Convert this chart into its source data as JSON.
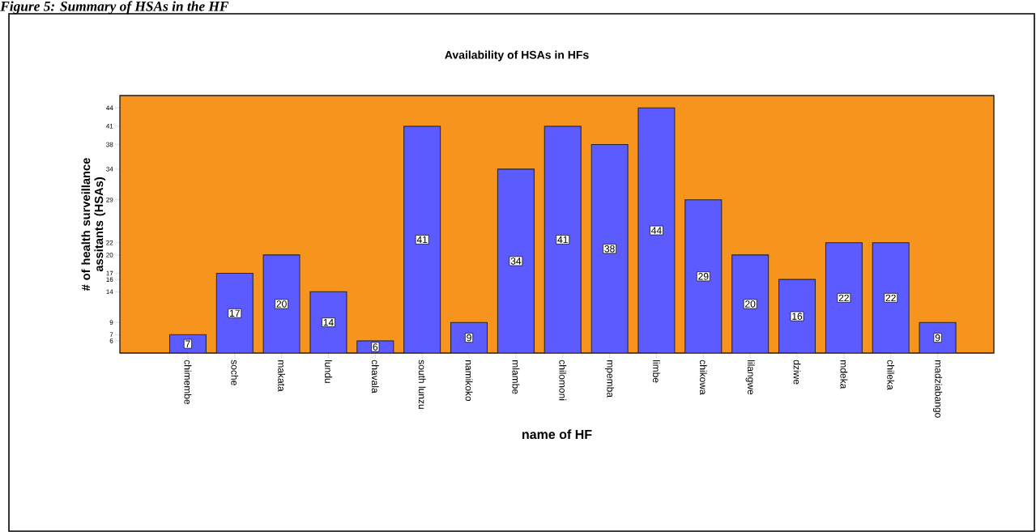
{
  "chart_data": {
    "type": "bar",
    "title": "Availability of HSAs in HFs",
    "xlabel": "name of HF",
    "ylabel": "# of health surveillance assitants (HSAs)",
    "annotations": [
      "Figure 5:      Summary of HSAs in the HF"
    ],
    "categories": [
      "chimembe",
      "soche",
      "makata",
      "lundu",
      "chavala",
      "south lunzu",
      "namikoko",
      "mlambe",
      "chilomoni",
      "mpemba",
      "limbe",
      "chikowa",
      "lilangwe",
      "dziwe",
      "mdeka",
      "chileka",
      "madziabango"
    ],
    "values": [
      7,
      17,
      20,
      14,
      6,
      41,
      9,
      34,
      41,
      38,
      44,
      29,
      20,
      16,
      22,
      22,
      9
    ],
    "color": "#5b5bff",
    "ylim": [
      4,
      46
    ],
    "yticks": [
      6,
      7,
      9,
      14,
      16,
      17,
      20,
      22,
      29,
      34,
      38,
      41,
      44
    ],
    "data_labels": true
  }
}
